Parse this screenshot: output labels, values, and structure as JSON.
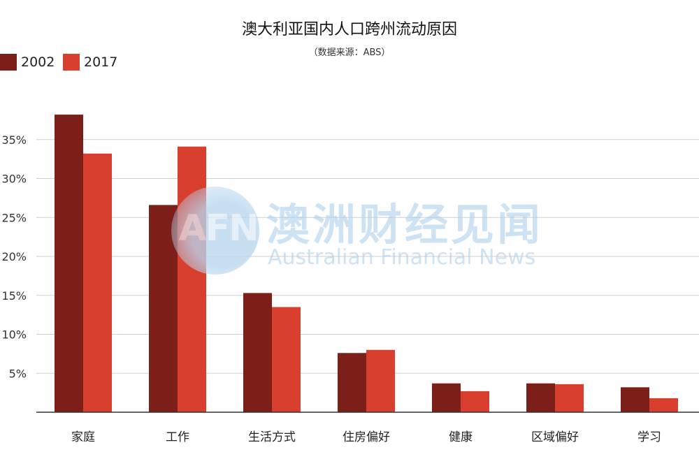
{
  "chart_data": {
    "type": "bar",
    "title": "澳大利亚国内人口跨州流动原因",
    "subtitle": "（数据来源：ABS）",
    "categories": [
      "家庭",
      "工作",
      "生活方式",
      "住房偏好",
      "健康",
      "区域偏好",
      "学习"
    ],
    "series": [
      {
        "name": "2002",
        "color": "#7b1f18",
        "values": [
          38.2,
          26.6,
          15.3,
          7.6,
          3.7,
          3.7,
          3.2
        ]
      },
      {
        "name": "2017",
        "color": "#d83f2e",
        "values": [
          33.2,
          34.1,
          13.5,
          8.0,
          2.7,
          3.6,
          1.8
        ]
      }
    ],
    "ylim": [
      0,
      40
    ],
    "yticks": [
      5,
      10,
      15,
      20,
      25,
      30,
      35
    ],
    "ytick_labels": [
      "5%",
      "10%",
      "15%",
      "20%",
      "25%",
      "30%",
      "35%"
    ],
    "grid": true,
    "legend_position": "top-left"
  },
  "watermark": {
    "logo_text": "AFN",
    "cn_text": "澳洲财经见闻",
    "en_text": "Australian Financial News"
  }
}
